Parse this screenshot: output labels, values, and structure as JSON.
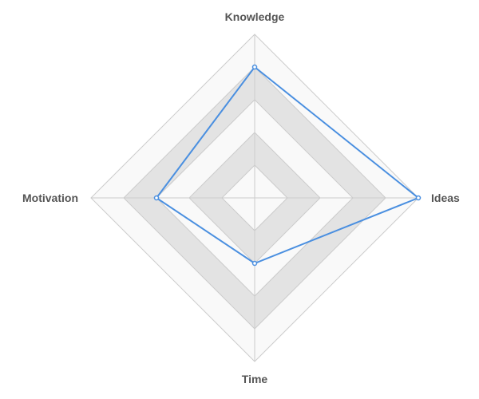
{
  "chart_data": {
    "type": "radar",
    "axes": [
      "Knowledge",
      "Ideas",
      "Time",
      "Motivation"
    ],
    "rings": 5,
    "range": [
      0,
      5
    ],
    "grid": true,
    "legend": "none",
    "colors": {
      "series": "#4a8fe0",
      "band_dark": "#e3e3e3",
      "band_light": "#f9f9f9",
      "grid_line": "#cccccc",
      "label": "#555555"
    },
    "series": [
      {
        "values": [
          4,
          5,
          2,
          3
        ]
      }
    ]
  }
}
